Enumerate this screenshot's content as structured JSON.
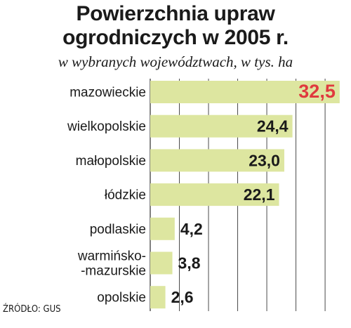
{
  "title_line1": "Powierzchnia upraw",
  "title_line2": "ogrodniczych w 2005 r.",
  "subtitle": "w wybranych województwach, w tys. ha",
  "source": "ŹRÓDŁO: GUS",
  "colors": {
    "bar": "#dde6a0",
    "label_text": "#1a1a1a",
    "highlight_value": "#e0393e",
    "grid": "#4a4a4a"
  },
  "chart_data": {
    "type": "bar",
    "orientation": "horizontal",
    "categories": [
      [
        "mazowieckie"
      ],
      [
        "wielkopolskie"
      ],
      [
        "małopolskie"
      ],
      [
        "łódzkie"
      ],
      [
        "podlaskie"
      ],
      [
        "warmińsko-",
        "-mazurskie"
      ],
      [
        "opolskie"
      ]
    ],
    "values": [
      32.5,
      24.4,
      23.0,
      22.1,
      4.2,
      3.8,
      2.6
    ],
    "value_labels": [
      "32,5",
      "24,4",
      "23,0",
      "22,1",
      "4,2",
      "3,8",
      "2,6"
    ],
    "highlight_index": 0,
    "xlim": [
      0,
      33
    ],
    "grid": true
  }
}
